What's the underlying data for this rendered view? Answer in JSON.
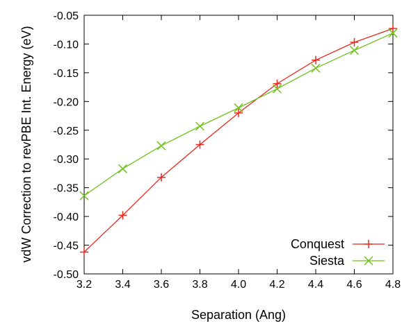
{
  "chart_data": {
    "type": "line",
    "title": "",
    "xlabel": "Separation (Ang)",
    "ylabel": "vdW Correction to revPBE Int. Energy (eV)",
    "xlim": [
      3.2,
      4.8
    ],
    "ylim": [
      -0.5,
      -0.05
    ],
    "xticks": [
      "3.2",
      "3.4",
      "3.6",
      "3.8",
      "4.0",
      "4.2",
      "4.4",
      "4.6",
      "4.8"
    ],
    "yticks": [
      "-0.05",
      "-0.10",
      "-0.15",
      "-0.20",
      "-0.25",
      "-0.30",
      "-0.35",
      "-0.40",
      "-0.45",
      "-0.50"
    ],
    "grid": false,
    "legend": "bottom-right",
    "x": [
      3.2,
      3.4,
      3.6,
      3.8,
      4.0,
      4.2,
      4.4,
      4.6,
      4.8
    ],
    "series": [
      {
        "name": "Conquest",
        "color": "#e8281e",
        "marker": "plus",
        "values": [
          -0.462,
          -0.398,
          -0.332,
          -0.275,
          -0.22,
          -0.169,
          -0.128,
          -0.097,
          -0.073
        ]
      },
      {
        "name": "Siesta",
        "color": "#6fc21a",
        "marker": "cross",
        "values": [
          -0.364,
          -0.317,
          -0.277,
          -0.243,
          -0.211,
          -0.178,
          -0.142,
          -0.111,
          -0.081
        ]
      }
    ]
  }
}
